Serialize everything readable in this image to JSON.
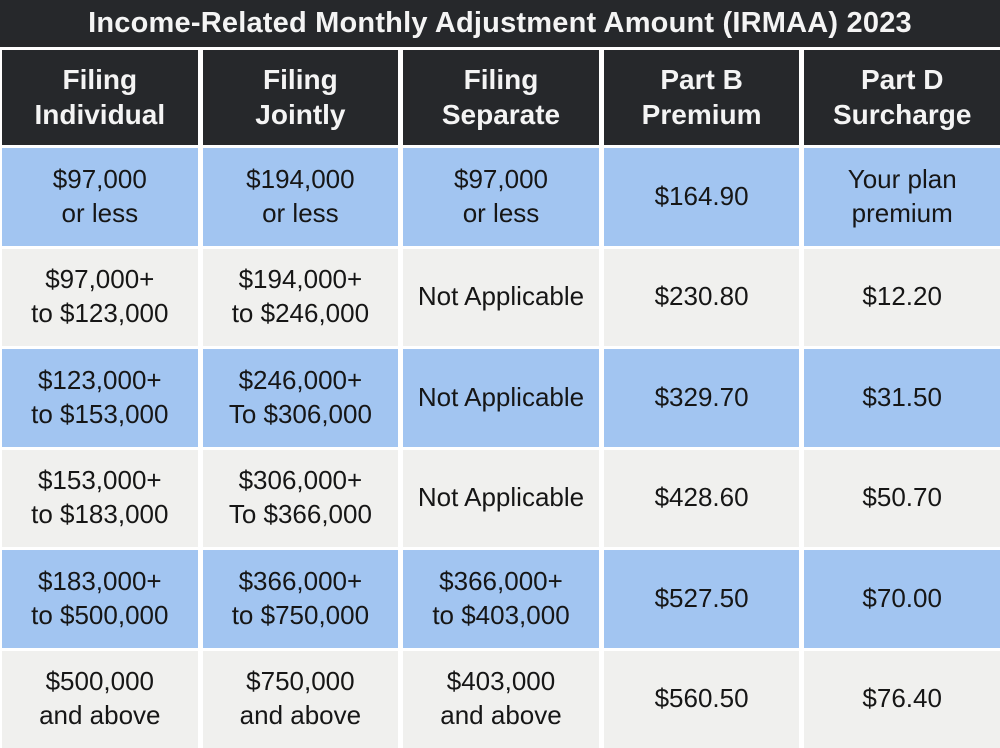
{
  "title": "Income-Related Monthly Adjustment Amount (IRMAA) 2023",
  "table": {
    "header": [
      "Filing\nIndividual",
      "Filing\nJointly",
      "Filing\nSeparate",
      "Part B\nPremium",
      "Part D\nSurcharge"
    ],
    "rows": [
      [
        "$97,000\nor less",
        "$194,000\nor less",
        "$97,000\nor less",
        "$164.90",
        "Your plan\npremium"
      ],
      [
        "$97,000+\nto $123,000",
        "$194,000+\nto $246,000",
        "Not Applicable",
        "$230.80",
        "$12.20"
      ],
      [
        "$123,000+\nto $153,000",
        "$246,000+\nTo $306,000",
        "Not Applicable",
        "$329.70",
        "$31.50"
      ],
      [
        "$153,000+\nto $183,000",
        "$306,000+\nTo $366,000",
        "Not Applicable",
        "$428.60",
        "$50.70"
      ],
      [
        "$183,000+\nto $500,000",
        "$366,000+\nto $750,000",
        "$366,000+\nto $403,000",
        "$527.50",
        "$70.00"
      ],
      [
        "$500,000\nand above",
        "$750,000\nand above",
        "$403,000\nand above",
        "$560.50",
        "$76.40"
      ]
    ]
  },
  "colors": {
    "dark_bg": "#26282b",
    "row_blue": "#a2c5f1",
    "row_gray": "#f0f0ee",
    "grid_white": "#ffffff",
    "header_text": "#f4f4f4",
    "body_text": "#161616"
  },
  "chart_data": {
    "type": "table",
    "title": "Income-Related Monthly Adjustment Amount (IRMAA) 2023",
    "columns": [
      "Filing Individual",
      "Filing Jointly",
      "Filing Separate",
      "Part B Premium",
      "Part D Surcharge"
    ],
    "rows": [
      [
        "$97,000 or less",
        "$194,000 or less",
        "$97,000 or less",
        "$164.90",
        "Your plan premium"
      ],
      [
        "$97,000+ to $123,000",
        "$194,000+ to $246,000",
        "Not Applicable",
        "$230.80",
        "$12.20"
      ],
      [
        "$123,000+ to $153,000",
        "$246,000+ To $306,000",
        "Not Applicable",
        "$329.70",
        "$31.50"
      ],
      [
        "$153,000+ to $183,000",
        "$306,000+ To $366,000",
        "Not Applicable",
        "$428.60",
        "$50.70"
      ],
      [
        "$183,000+ to $500,000",
        "$366,000+ to $750,000",
        "$366,000+ to $403,000",
        "$527.50",
        "$70.00"
      ],
      [
        "$500,000 and above",
        "$750,000 and above",
        "$403,000 and above",
        "$560.50",
        "$76.40"
      ]
    ],
    "part_b_premiums": [
      164.9,
      230.8,
      329.7,
      428.6,
      527.5,
      560.5
    ],
    "part_d_surcharges": [
      null,
      12.2,
      31.5,
      50.7,
      70.0,
      76.4
    ],
    "layout": {
      "row_stripe_colors": [
        "#a2c5f1",
        "#f0f0ee"
      ],
      "header_style": "dark",
      "grid": "white-separators"
    }
  }
}
